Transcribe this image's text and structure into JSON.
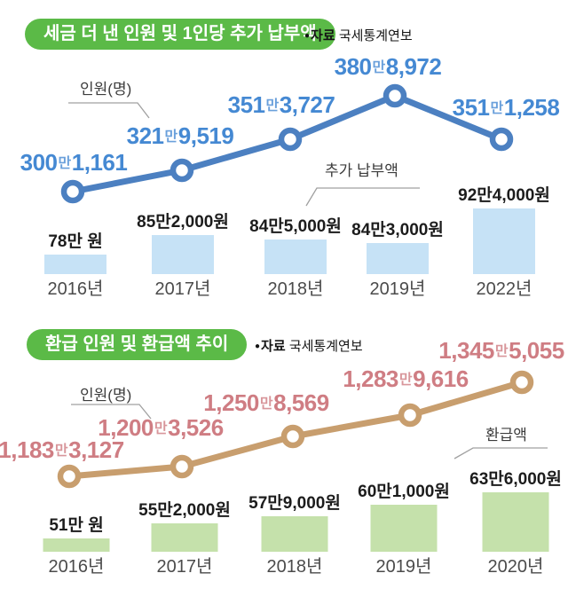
{
  "chart_data": [
    {
      "type": "line+bar",
      "title": "세금 더 낸 인원 및 1인당 추가 납부액",
      "source": {
        "bullet": "●",
        "prefix": "자료",
        "name": "국세통계연보"
      },
      "man_suffix": "만",
      "categories": [
        "2016년",
        "2017년",
        "2018년",
        "2019년",
        "2022년"
      ],
      "grid": false,
      "legend_position": "callout",
      "series": [
        {
          "name": "인원(명)",
          "type": "line",
          "values": [
            3001161,
            3219519,
            3513727,
            3808972,
            3511258
          ],
          "labels": [
            "300만1,161",
            "321만9,519",
            "351만3,727",
            "380만8,972",
            "351만1,258"
          ],
          "labels_split": [
            [
              "300",
              "1,161"
            ],
            [
              "321",
              "9,519"
            ],
            [
              "351",
              "3,727"
            ],
            [
              "380",
              "8,972"
            ],
            [
              "351",
              "1,258"
            ]
          ],
          "color": "#4c80c1",
          "label_color": "#4589d3"
        },
        {
          "name": "추가 납부액",
          "type": "bar",
          "values": [
            780000,
            852000,
            845000,
            843000,
            924000
          ],
          "labels": [
            "78만 원",
            "85만2,000원",
            "84만5,000원",
            "84만3,000원",
            "92만4,000원"
          ],
          "color": "#c6e2f6"
        }
      ]
    },
    {
      "type": "line+bar",
      "title": "환급 인원 및 환급액 추이",
      "source": {
        "bullet": "●",
        "prefix": "자료",
        "name": "국세통계연보"
      },
      "man_suffix": "만",
      "categories": [
        "2016년",
        "2017년",
        "2018년",
        "2019년",
        "2020년"
      ],
      "grid": false,
      "legend_position": "callout",
      "series": [
        {
          "name": "인원(명)",
          "type": "line",
          "values": [
            11833127,
            12003526,
            12508569,
            12839616,
            13455055
          ],
          "labels": [
            "1,183만3,127",
            "1,200만3,526",
            "1,250만8,569",
            "1,283만9,616",
            "1,345만5,055"
          ],
          "labels_split": [
            [
              "1,183",
              "3,127"
            ],
            [
              "1,200",
              "3,526"
            ],
            [
              "1,250",
              "8,569"
            ],
            [
              "1,283",
              "9,616"
            ],
            [
              "1,345",
              "5,055"
            ]
          ],
          "color": "#c89e6e",
          "label_color": "#cf7d83"
        },
        {
          "name": "환급액",
          "type": "bar",
          "values": [
            510000,
            552000,
            579000,
            601000,
            636000
          ],
          "labels": [
            "51만 원",
            "55만2,000원",
            "57만9,000원",
            "60만1,000원",
            "63만6,000원"
          ],
          "color": "#c5e1ab"
        }
      ]
    }
  ],
  "theme": {
    "pill_bg": "#5bba47",
    "pill_text": "#ffffff",
    "year_color": "#4b4b4b",
    "bar_label_color": "#1c1c1c",
    "callout_color": "#3c3c3c",
    "pointer_color": "#a0a0a0",
    "source_color": "#141414",
    "background": "#ffffff"
  }
}
